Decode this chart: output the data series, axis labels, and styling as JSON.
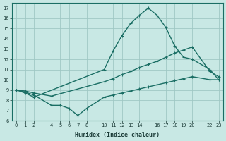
{
  "xlabel": "Humidex (Indice chaleur)",
  "bg_color": "#c8e8e4",
  "grid_color": "#a0c8c4",
  "line_color": "#1a6e64",
  "line1_x": [
    0,
    1,
    2,
    10,
    11,
    12,
    13,
    14,
    15,
    16,
    17,
    18,
    19,
    20,
    22,
    23
  ],
  "line1_y": [
    9.0,
    8.7,
    8.3,
    11.0,
    12.8,
    14.3,
    15.5,
    16.3,
    17.0,
    16.3,
    15.1,
    13.3,
    12.2,
    12.0,
    11.0,
    10.0
  ],
  "line2_x": [
    0,
    1,
    2,
    4,
    10,
    11,
    12,
    13,
    14,
    15,
    16,
    17,
    18,
    19,
    20,
    22,
    23
  ],
  "line2_y": [
    9.0,
    8.9,
    8.7,
    8.4,
    9.8,
    10.1,
    10.5,
    10.8,
    11.2,
    11.5,
    11.8,
    12.2,
    12.6,
    12.9,
    13.2,
    10.8,
    10.3
  ],
  "line3_x": [
    0,
    1,
    2,
    4,
    5,
    6,
    7,
    8,
    10,
    11,
    12,
    13,
    14,
    15,
    16,
    17,
    18,
    19,
    20,
    22,
    23
  ],
  "line3_y": [
    9.0,
    8.8,
    8.5,
    7.5,
    7.5,
    7.2,
    6.5,
    7.2,
    8.3,
    8.5,
    8.7,
    8.9,
    9.1,
    9.3,
    9.5,
    9.7,
    9.9,
    10.1,
    10.3,
    10.0,
    10.0
  ],
  "ylim": [
    6,
    17.5
  ],
  "xlim": [
    -0.5,
    23.5
  ],
  "yticks": [
    6,
    7,
    8,
    9,
    10,
    11,
    12,
    13,
    14,
    15,
    16,
    17
  ],
  "xticks": [
    0,
    1,
    2,
    4,
    5,
    6,
    7,
    8,
    10,
    11,
    12,
    13,
    14,
    16,
    17,
    18,
    19,
    20,
    22,
    23
  ]
}
